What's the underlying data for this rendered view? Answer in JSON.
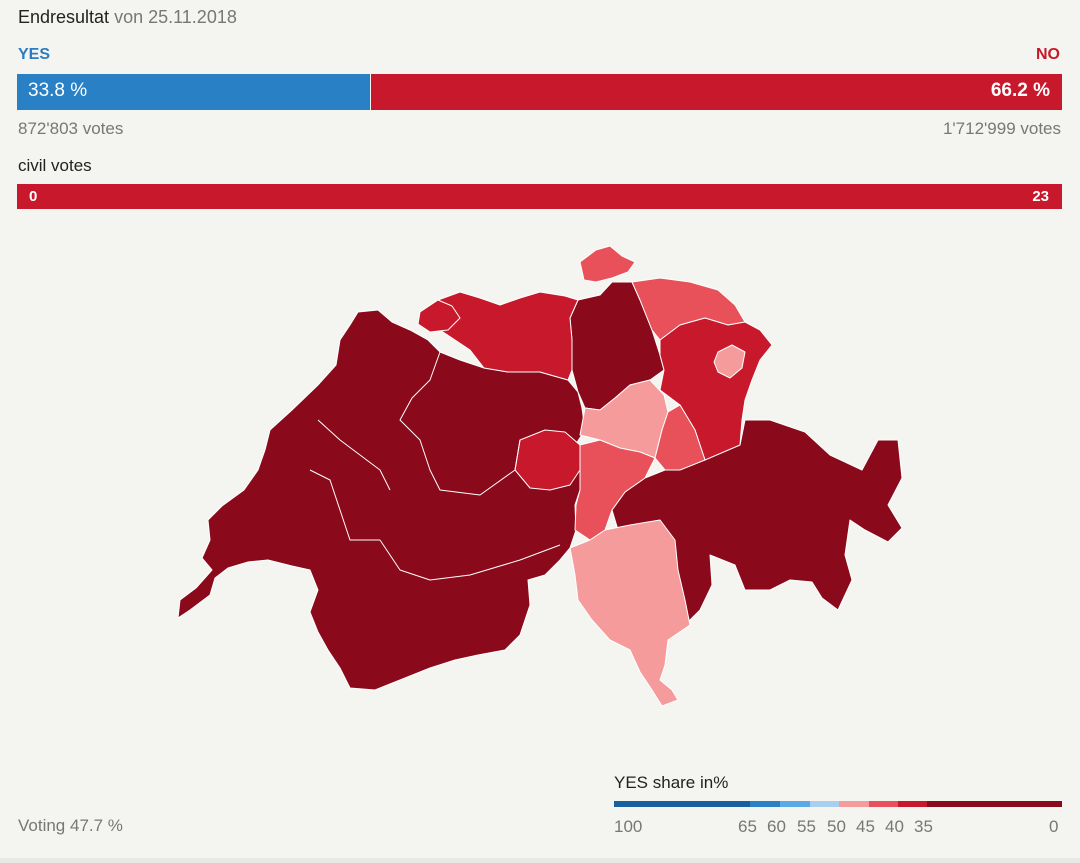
{
  "header": {
    "title": "Endresultat",
    "date_text": "von 25.11.2018"
  },
  "result": {
    "yes_label": "YES",
    "no_label": "NO",
    "yes_pct": 33.8,
    "no_pct": 66.2,
    "yes_pct_text": "33.8 %",
    "no_pct_text": "66.2 %",
    "yes_votes": "872'803 votes",
    "no_votes": "1'712'999 votes",
    "yes_color": "#2a80c5",
    "no_color": "#c8182c"
  },
  "civil": {
    "label": "civil votes",
    "yes_count": "0",
    "no_count": "23"
  },
  "turnout": "Voting 47.7 %",
  "legend": {
    "title": "YES share in%",
    "ticks": [
      "100",
      "65",
      "60",
      "55",
      "50",
      "45",
      "40",
      "35",
      "0"
    ],
    "colors": {
      "65-100": "#1a5fa0",
      "60-65": "#2a80c5",
      "55-60": "#5aa9e6",
      "50-55": "#a8cff0",
      "45-50": "#f59b9b",
      "40-45": "#e8505a",
      "35-40": "#c8182c",
      "0-35": "#8a0a1c"
    }
  },
  "map": {
    "region": "Switzerland",
    "regions": [
      {
        "name": "western-cantons",
        "color": "#8a0a1c"
      },
      {
        "name": "bern-region",
        "color": "#8a0a1c"
      },
      {
        "name": "valais",
        "color": "#8a0a1c"
      },
      {
        "name": "graubuenden",
        "color": "#8a0a1c"
      },
      {
        "name": "zurich",
        "color": "#8a0a1c"
      },
      {
        "name": "northern-cantons",
        "color": "#c8182c"
      },
      {
        "name": "thurgau",
        "color": "#e8505a"
      },
      {
        "name": "st-gallen",
        "color": "#c8182c"
      },
      {
        "name": "appenzell",
        "color": "#f59b9b"
      },
      {
        "name": "schwyz-zug",
        "color": "#f59b9b"
      },
      {
        "name": "glarus",
        "color": "#e8505a"
      },
      {
        "name": "uri",
        "color": "#e8505a"
      },
      {
        "name": "central-small",
        "color": "#c8182c"
      },
      {
        "name": "ticino",
        "color": "#f59b9b"
      },
      {
        "name": "schaffhausen",
        "color": "#e8505a"
      }
    ]
  }
}
